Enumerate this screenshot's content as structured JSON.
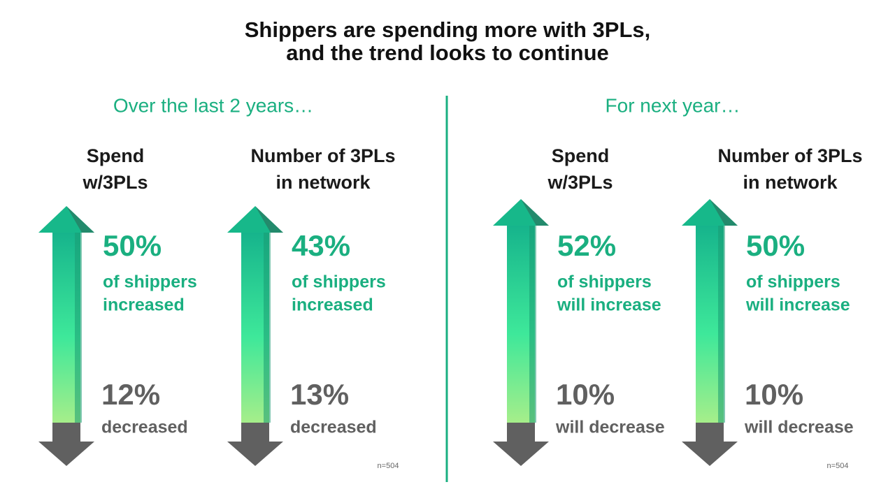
{
  "title": [
    "Shippers are spending more with 3PLs,",
    "and the trend looks to continue"
  ],
  "sections": [
    {
      "heading": "Over the last 2 years…",
      "note": "n=504",
      "panels": [
        {
          "label": [
            "Spend",
            "w/3PLs"
          ],
          "up": {
            "pct": "50%",
            "text": [
              "of shippers",
              "increased"
            ]
          },
          "down": {
            "pct": "12%",
            "text": "decreased"
          }
        },
        {
          "label": [
            "Number of 3PLs",
            "in network"
          ],
          "up": {
            "pct": "43%",
            "text": [
              "of shippers",
              "increased"
            ]
          },
          "down": {
            "pct": "13%",
            "text": "decreased"
          }
        }
      ]
    },
    {
      "heading": "For next year…",
      "note": "n=504",
      "panels": [
        {
          "label": [
            "Spend",
            "w/3PLs"
          ],
          "up": {
            "pct": "52%",
            "text": [
              "of shippers",
              "will increase"
            ]
          },
          "down": {
            "pct": "10%",
            "text": "will decrease"
          }
        },
        {
          "label": [
            "Number of 3PLs",
            "in network"
          ],
          "up": {
            "pct": "50%",
            "text": [
              "of shippers",
              "will increase"
            ]
          },
          "down": {
            "pct": "10%",
            "text": "will decrease"
          }
        }
      ]
    }
  ]
}
